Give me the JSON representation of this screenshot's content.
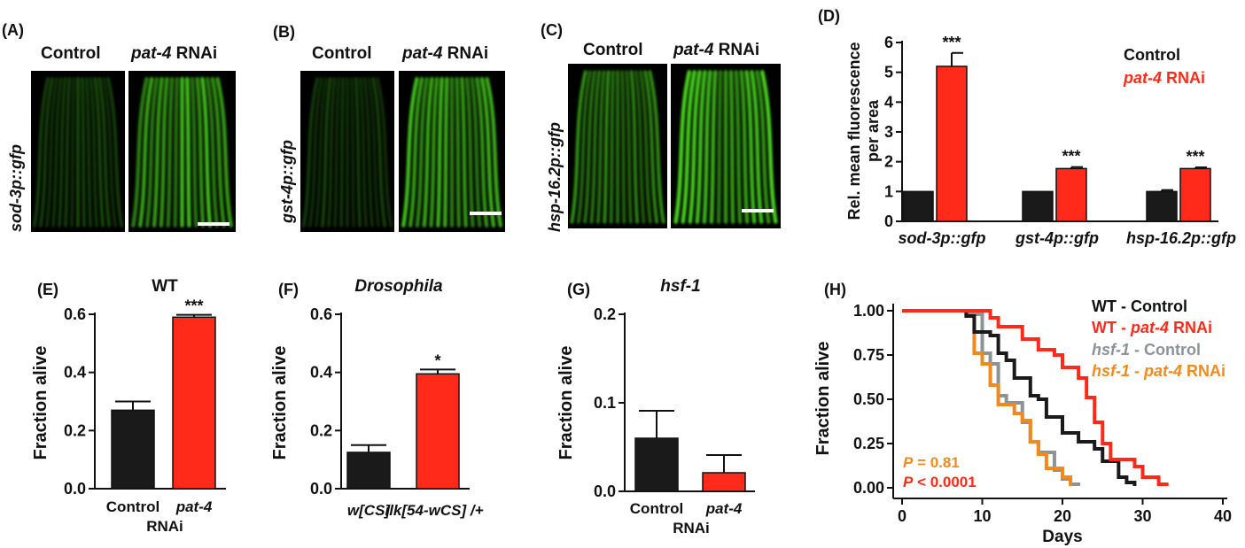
{
  "colors": {
    "control": "#1a1a1a",
    "treatment": "#ff2a1a",
    "hsf_control": "#8c9396",
    "hsf_treatment": "#f08a1e",
    "gfp": "#4be01e"
  },
  "panels": {
    "A": {
      "letter": "(A)",
      "col1": "Control",
      "col2_italic": "pat-4",
      "col2_rest": " RNAi",
      "side_label": "sod-3p::gfp"
    },
    "B": {
      "letter": "(B)",
      "col1": "Control",
      "col2_italic": "pat-4",
      "col2_rest": " RNAi",
      "side_label": "gst-4p::gfp"
    },
    "C": {
      "letter": "(C)",
      "col1": "Control",
      "col2_italic": "pat-4",
      "col2_rest": " RNAi",
      "side_label": "hsp-16.2p::gfp"
    },
    "D": {
      "letter": "(D)",
      "ylabel_line1": "Rel. mean fluorescence",
      "ylabel_line2": "per area",
      "legend_control": "Control",
      "legend_treat_italic": "pat-4",
      "legend_treat_rest": " RNAi"
    },
    "E": {
      "letter": "(E)",
      "title": "WT",
      "ylabel": "Fraction alive",
      "x1": "Control",
      "x2": "pat-4",
      "x_sub": "RNAi"
    },
    "F": {
      "letter": "(F)",
      "title": "Drosophila",
      "ylabel": "Fraction alive",
      "x1": "w[CS]",
      "x2": "ilk[54-wCS] /+"
    },
    "G": {
      "letter": "(G)",
      "title": "hsf-1",
      "ylabel": "Fraction alive",
      "x1": "Control",
      "x2": "pat-4",
      "x_sub": "RNAi"
    },
    "H": {
      "letter": "(H)",
      "ylabel": "Fraction alive",
      "xlabel": "Days",
      "legend": [
        {
          "a": "WT",
          "b": " - Control",
          "a_italic": false,
          "b_italic": false
        },
        {
          "a": "WT - ",
          "b": "pat-4",
          "c": " RNAi"
        },
        {
          "a": "hsf-1",
          "b": " - Control"
        },
        {
          "a": "hsf-1",
          "b": " - ",
          "c": "pat-4",
          "d": " RNAi"
        }
      ],
      "p1_label": "P",
      "p1_value": " = 0.81",
      "p2_label": "P",
      "p2_value": " < 0.0001"
    }
  },
  "chart_data": [
    {
      "panel": "D",
      "type": "bar",
      "categories": [
        "sod-3p::gfp",
        "gst-4p::gfp",
        "hsp-16.2p::gfp"
      ],
      "series": [
        {
          "name": "Control",
          "values": [
            1.0,
            1.0,
            1.0
          ],
          "errors": [
            0.0,
            0.0,
            0.05
          ]
        },
        {
          "name": "pat-4 RNAi",
          "values": [
            5.2,
            1.77,
            1.77
          ],
          "errors": [
            0.45,
            0.05,
            0.04
          ]
        }
      ],
      "significance": [
        "***",
        "***",
        "***"
      ],
      "ylim": [
        0,
        6
      ],
      "yticks": [
        0,
        1,
        2,
        3,
        4,
        5,
        6
      ]
    },
    {
      "panel": "E",
      "type": "bar",
      "categories": [
        "Control",
        "pat-4"
      ],
      "values": [
        0.27,
        0.59
      ],
      "errors": [
        0.03,
        0.008
      ],
      "significance": [
        "",
        "***"
      ],
      "ylim": [
        0,
        0.6
      ],
      "yticks": [
        0.0,
        0.2,
        0.4,
        0.6
      ]
    },
    {
      "panel": "F",
      "type": "bar",
      "categories": [
        "w[CS]",
        "ilk[54-wCS] /+"
      ],
      "values": [
        0.125,
        0.395
      ],
      "errors": [
        0.025,
        0.015
      ],
      "significance": [
        "",
        "*"
      ],
      "ylim": [
        0,
        0.6
      ],
      "yticks": [
        0.0,
        0.2,
        0.4,
        0.6
      ]
    },
    {
      "panel": "G",
      "type": "bar",
      "categories": [
        "Control",
        "pat-4"
      ],
      "values": [
        0.06,
        0.021
      ],
      "errors": [
        0.031,
        0.02
      ],
      "ylim": [
        0,
        0.2
      ],
      "yticks": [
        0.0,
        0.1,
        0.2
      ]
    },
    {
      "panel": "H",
      "type": "line",
      "xlim": [
        0,
        40
      ],
      "ylim": [
        0,
        1
      ],
      "xticks": [
        0,
        10,
        20,
        30,
        40
      ],
      "yticks": [
        "0.00",
        "0.25",
        "0.50",
        "0.75",
        "1.00"
      ],
      "series": [
        {
          "name": "WT - Control",
          "color": "control",
          "points": [
            [
              0,
              1.0
            ],
            [
              4,
              1.0
            ],
            [
              8,
              0.97
            ],
            [
              9,
              0.88
            ],
            [
              11,
              0.86
            ],
            [
              12,
              0.76
            ],
            [
              13,
              0.72
            ],
            [
              14,
              0.62
            ],
            [
              16,
              0.52
            ],
            [
              17,
              0.5
            ],
            [
              18,
              0.4
            ],
            [
              20,
              0.31
            ],
            [
              22,
              0.26
            ],
            [
              24,
              0.22
            ],
            [
              25,
              0.15
            ],
            [
              27,
              0.06
            ],
            [
              28,
              0.03
            ],
            [
              29,
              0.01
            ]
          ]
        },
        {
          "name": "WT - pat-4 RNAi",
          "color": "treatment",
          "points": [
            [
              0,
              1.0
            ],
            [
              9,
              1.0
            ],
            [
              11,
              0.96
            ],
            [
              12,
              0.91
            ],
            [
              15,
              0.84
            ],
            [
              17,
              0.78
            ],
            [
              19,
              0.75
            ],
            [
              20,
              0.68
            ],
            [
              22,
              0.62
            ],
            [
              23,
              0.51
            ],
            [
              24,
              0.37
            ],
            [
              25,
              0.25
            ],
            [
              26,
              0.16
            ],
            [
              29,
              0.12
            ],
            [
              30,
              0.06
            ],
            [
              32,
              0.02
            ],
            [
              33,
              0.01
            ]
          ]
        },
        {
          "name": "hsf-1 - Control",
          "color": "hsf_control",
          "points": [
            [
              0,
              1.0
            ],
            [
              3,
              1.0
            ],
            [
              8,
              0.98
            ],
            [
              10,
              0.76
            ],
            [
              11,
              0.7
            ],
            [
              12,
              0.52
            ],
            [
              13,
              0.48
            ],
            [
              15,
              0.37
            ],
            [
              16,
              0.26
            ],
            [
              17,
              0.2
            ],
            [
              19,
              0.1
            ],
            [
              20,
              0.05
            ],
            [
              21,
              0.02
            ],
            [
              22,
              0.01
            ]
          ]
        },
        {
          "name": "hsf-1 - pat-4 RNAi",
          "color": "hsf_treatment",
          "points": [
            [
              0,
              1.0
            ],
            [
              3,
              1.0
            ],
            [
              8,
              0.97
            ],
            [
              9,
              0.76
            ],
            [
              10,
              0.7
            ],
            [
              11,
              0.58
            ],
            [
              12,
              0.47
            ],
            [
              14,
              0.42
            ],
            [
              15,
              0.38
            ],
            [
              16,
              0.26
            ],
            [
              17,
              0.19
            ],
            [
              18,
              0.11
            ],
            [
              20,
              0.06
            ],
            [
              21,
              0.01
            ]
          ]
        }
      ]
    }
  ]
}
